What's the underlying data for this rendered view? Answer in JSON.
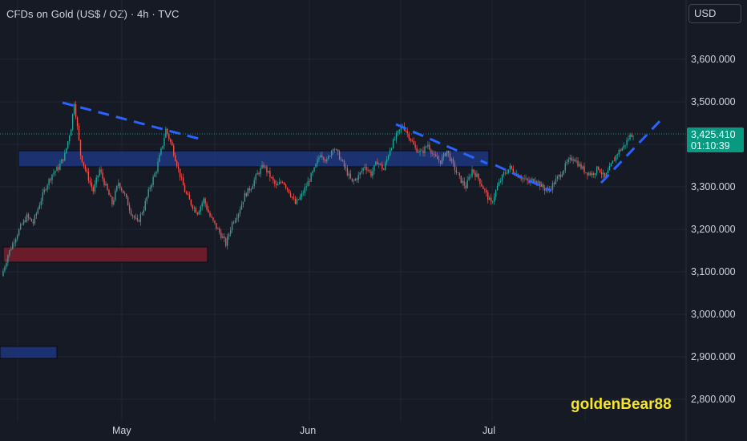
{
  "header": {
    "title": "CFDs on Gold (US$ / OZ) · 4h · TVC",
    "currency": "USD"
  },
  "watermark": "goldenBear88",
  "current_price": {
    "price": "3,425.410",
    "countdown": "01:10:39"
  },
  "colors": {
    "background": "#161a25",
    "grid": "#232734",
    "up": "#26a69a",
    "down": "#ef5350",
    "trendline": "#2962ff",
    "resistance_zone": "#1e3a8a",
    "support_zone": "#7f1d2d",
    "price_badge": "#089981",
    "watermark": "#f5e52c"
  },
  "chart_data": {
    "type": "candlestick",
    "interval": "4h",
    "x_labels": [
      "May",
      "Jun",
      "Jul"
    ],
    "y_ticks": [
      "2,800.000",
      "2,900.000",
      "3,000.000",
      "3,100.000",
      "3,200.000",
      "3,300.000",
      "3,400.000",
      "3,500.000",
      "3,600.000"
    ],
    "y_tick_values": [
      2800,
      2900,
      3000,
      3100,
      3200,
      3300,
      3400,
      3500,
      3600
    ],
    "ylim": [
      2720,
      3700
    ],
    "grid": true,
    "series_close_path": [
      [
        0,
        3090
      ],
      [
        4,
        3140
      ],
      [
        8,
        3175
      ],
      [
        12,
        3205
      ],
      [
        16,
        3230
      ],
      [
        20,
        3215
      ],
      [
        24,
        3260
      ],
      [
        28,
        3300
      ],
      [
        32,
        3330
      ],
      [
        36,
        3345
      ],
      [
        40,
        3375
      ],
      [
        44,
        3440
      ],
      [
        46,
        3500
      ],
      [
        48,
        3440
      ],
      [
        50,
        3375
      ],
      [
        54,
        3330
      ],
      [
        58,
        3290
      ],
      [
        62,
        3340
      ],
      [
        66,
        3300
      ],
      [
        70,
        3260
      ],
      [
        74,
        3310
      ],
      [
        78,
        3280
      ],
      [
        82,
        3240
      ],
      [
        86,
        3215
      ],
      [
        90,
        3250
      ],
      [
        94,
        3300
      ],
      [
        98,
        3340
      ],
      [
        102,
        3400
      ],
      [
        104,
        3435
      ],
      [
        108,
        3395
      ],
      [
        112,
        3340
      ],
      [
        116,
        3290
      ],
      [
        120,
        3260
      ],
      [
        124,
        3240
      ],
      [
        128,
        3270
      ],
      [
        132,
        3230
      ],
      [
        136,
        3205
      ],
      [
        140,
        3180
      ],
      [
        142,
        3165
      ],
      [
        146,
        3215
      ],
      [
        150,
        3240
      ],
      [
        154,
        3280
      ],
      [
        158,
        3300
      ],
      [
        162,
        3330
      ],
      [
        166,
        3350
      ],
      [
        170,
        3325
      ],
      [
        174,
        3300
      ],
      [
        178,
        3315
      ],
      [
        182,
        3290
      ],
      [
        186,
        3260
      ],
      [
        190,
        3280
      ],
      [
        194,
        3310
      ],
      [
        198,
        3340
      ],
      [
        202,
        3380
      ],
      [
        206,
        3360
      ],
      [
        210,
        3395
      ],
      [
        214,
        3370
      ],
      [
        218,
        3340
      ],
      [
        222,
        3310
      ],
      [
        226,
        3325
      ],
      [
        230,
        3350
      ],
      [
        234,
        3330
      ],
      [
        238,
        3360
      ],
      [
        242,
        3340
      ],
      [
        246,
        3390
      ],
      [
        250,
        3420
      ],
      [
        254,
        3445
      ],
      [
        258,
        3420
      ],
      [
        262,
        3390
      ],
      [
        266,
        3380
      ],
      [
        270,
        3400
      ],
      [
        274,
        3370
      ],
      [
        278,
        3360
      ],
      [
        282,
        3385
      ],
      [
        286,
        3350
      ],
      [
        290,
        3320
      ],
      [
        294,
        3300
      ],
      [
        298,
        3340
      ],
      [
        302,
        3320
      ],
      [
        306,
        3290
      ],
      [
        310,
        3260
      ],
      [
        314,
        3300
      ],
      [
        318,
        3330
      ],
      [
        322,
        3345
      ],
      [
        326,
        3330
      ],
      [
        330,
        3320
      ],
      [
        334,
        3310
      ],
      [
        338,
        3320
      ],
      [
        342,
        3300
      ],
      [
        346,
        3290
      ],
      [
        350,
        3310
      ],
      [
        354,
        3330
      ],
      [
        358,
        3355
      ],
      [
        362,
        3370
      ],
      [
        366,
        3350
      ],
      [
        370,
        3335
      ],
      [
        374,
        3330
      ],
      [
        378,
        3345
      ],
      [
        382,
        3320
      ],
      [
        386,
        3350
      ],
      [
        390,
        3380
      ],
      [
        394,
        3395
      ],
      [
        398,
        3420
      ],
      [
        400,
        3425
      ]
    ]
  }
}
